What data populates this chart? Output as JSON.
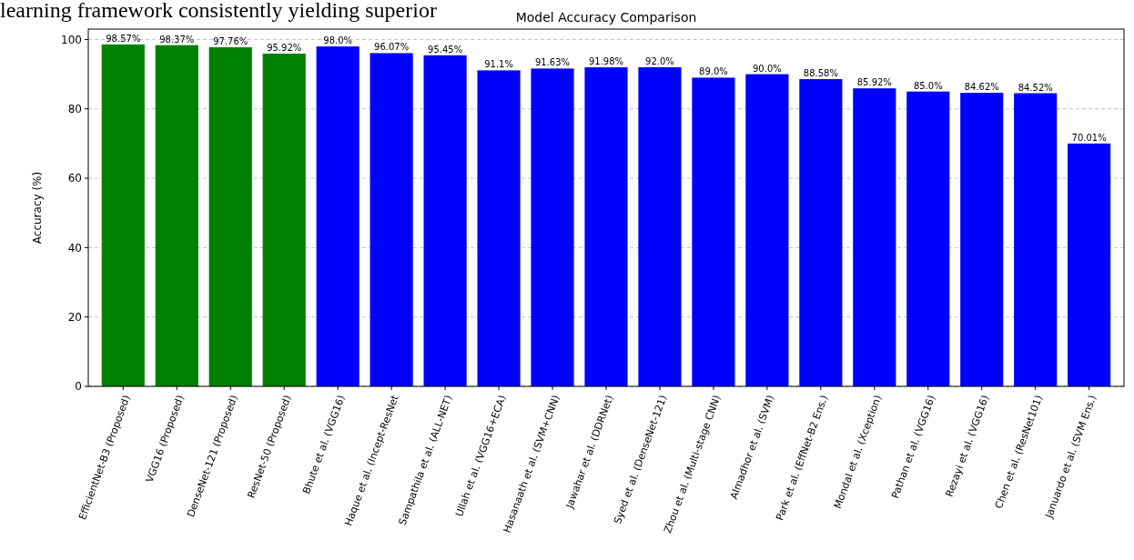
{
  "chart_data": {
    "type": "bar",
    "title": "Model Accuracy Comparison",
    "ylabel": "Accuracy (%)",
    "annotations": [
      "learning framework consistently yielding superior"
    ],
    "categories": [
      "EfficientNet-B3 (Proposed)",
      "VGG16 (Proposed)",
      "DenseNet-121 (Proposed)",
      "ResNet-50 (Proposed)",
      "Bhute et al. (VGG16)",
      "Haque et al. (Incept-ResNet",
      "Sampathila et al. (ALL-NET)",
      "Ullah et al. (VGG16+ECA)",
      "Hasanaath et al. (SVM+CNN)",
      "Jawahar et al. (DDRNet)",
      "Syed et al. (DenseNet-121)",
      "Zhou et al. (Multi-stage CNN)",
      "Almadhor et al. (SVM)",
      "Park et al. (EffNet-B2 Ens.)",
      "Mondal et al. (Xception)",
      "Pathan et al. (VGG16)",
      "Rezayi et al. (VGG16)",
      "Chen et al. (ResNet101)",
      "Januardo et al. (SVM Ens.)"
    ],
    "values": [
      98.57,
      98.37,
      97.76,
      95.92,
      98.0,
      96.07,
      95.45,
      91.1,
      91.63,
      91.98,
      92.0,
      89.0,
      90.0,
      88.58,
      85.92,
      85.0,
      84.62,
      84.52,
      70.01
    ],
    "value_labels": [
      "98.57%",
      "98.37%",
      "97.76%",
      "95.92%",
      "98.0%",
      "96.07%",
      "95.45%",
      "91.1%",
      "91.63%",
      "91.98%",
      "92.0%",
      "89.0%",
      "90.0%",
      "88.58%",
      "85.92%",
      "85.0%",
      "84.62%",
      "84.52%",
      "70.01%"
    ],
    "colors": [
      "#008000",
      "#008000",
      "#008000",
      "#008000",
      "#0000ff",
      "#0000ff",
      "#0000ff",
      "#0000ff",
      "#0000ff",
      "#0000ff",
      "#0000ff",
      "#0000ff",
      "#0000ff",
      "#0000ff",
      "#0000ff",
      "#0000ff",
      "#0000ff",
      "#0000ff",
      "#0000ff"
    ],
    "ylim": [
      0,
      103
    ],
    "yticks": [
      0,
      20,
      40,
      60,
      80,
      100
    ],
    "grid": "y"
  }
}
